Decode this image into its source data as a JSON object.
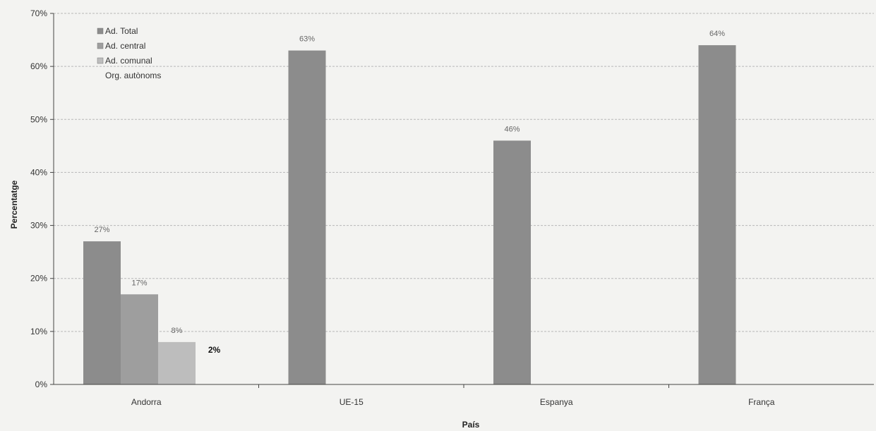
{
  "chart_data": {
    "type": "bar",
    "categories": [
      "Andorra",
      "UE-15",
      "Espanya",
      "França"
    ],
    "series": [
      {
        "name": "Ad. Total",
        "values": [
          27,
          63,
          46,
          64
        ],
        "labels": [
          "27%",
          "63%",
          "46%",
          "64%"
        ],
        "color": "#8c8c8c"
      },
      {
        "name": "Ad. central",
        "values": [
          17,
          null,
          null,
          null
        ],
        "labels": [
          "17%",
          "",
          "",
          ""
        ],
        "color": "#9e9e9e"
      },
      {
        "name": "Ad. comunal",
        "values": [
          8,
          null,
          null,
          null
        ],
        "labels": [
          "8%",
          "",
          "",
          ""
        ],
        "color": "#bdbdbd"
      },
      {
        "name": "Org. autònoms",
        "values": [
          2,
          null,
          null,
          null
        ],
        "labels": [
          "2%",
          "",
          "",
          ""
        ],
        "color": "#d0d0d0"
      }
    ],
    "xlabel": "País",
    "ylabel": "Percentatge",
    "ylim": [
      0,
      70
    ],
    "yticks": [
      "0%",
      "10%",
      "20%",
      "30%",
      "40%",
      "50%",
      "60%",
      "70%"
    ],
    "grid": true,
    "legend_position": "top-left"
  }
}
